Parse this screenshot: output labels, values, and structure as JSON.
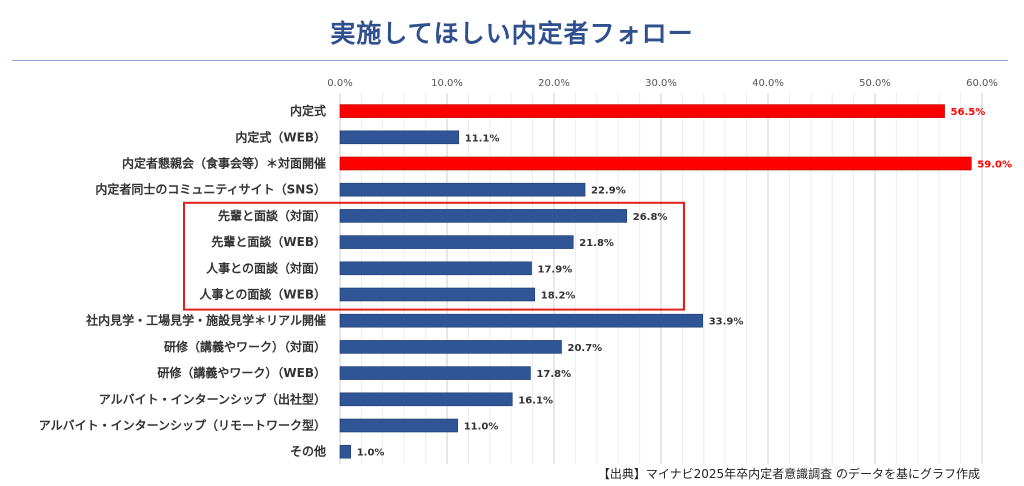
{
  "title": "実施してほしい内定者フォロー",
  "source": "【出典】マイナビ2025年卒内定者意識調査 のデータを基にグラフ作成",
  "colors": {
    "highlight": "#ff0000",
    "normal": "#2f5597",
    "box": "#e0201a",
    "title": "#2f4f8f"
  },
  "chart_data": {
    "type": "bar",
    "orientation": "horizontal",
    "title": "実施してほしい内定者フォロー",
    "categories": [
      "内定式",
      "内定式（WEB）",
      "内定者懇親会（食事会等）＊対面開催",
      "内定者同士のコミュニティサイト（SNS）",
      "先輩と面談（対面）",
      "先輩と面談（WEB）",
      "人事との面談（対面）",
      "人事との面談（WEB）",
      "社内見学・工場見学・施設見学＊リアル開催",
      "研修（講義やワーク）（対面）",
      "研修（講義やワーク）（WEB）",
      "アルバイト・インターンシップ（出社型）",
      "アルバイト・インターンシップ（リモートワーク型）",
      "その他"
    ],
    "values": [
      56.5,
      11.1,
      59.0,
      22.9,
      26.8,
      21.8,
      17.9,
      18.2,
      33.9,
      20.7,
      17.8,
      16.1,
      11.0,
      1.0
    ],
    "value_labels": [
      "56.5%",
      "11.1%",
      "59.0%",
      "22.9%",
      "26.8%",
      "21.8%",
      "17.9%",
      "18.2%",
      "33.9%",
      "20.7%",
      "17.8%",
      "16.1%",
      "11.0%",
      "1.0%"
    ],
    "highlighted": [
      0,
      2
    ],
    "boxed_range": [
      4,
      7
    ],
    "xlim": [
      0,
      60
    ],
    "xticks": [
      0,
      10,
      20,
      30,
      40,
      50,
      60
    ],
    "xtick_labels": [
      "0.0%",
      "10.0%",
      "20.0%",
      "30.0%",
      "40.0%",
      "50.0%",
      "60.0%"
    ],
    "grid": true
  }
}
